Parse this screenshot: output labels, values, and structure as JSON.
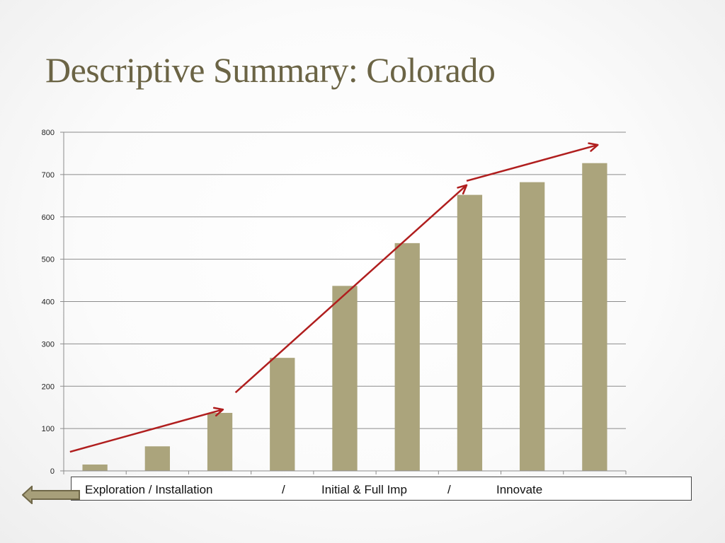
{
  "slide": {
    "title": "Descriptive Summary: Colorado"
  },
  "chart_data": {
    "type": "bar",
    "values": [
      15,
      58,
      137,
      267,
      437,
      538,
      652,
      682,
      727
    ],
    "ylim": [
      0,
      800
    ],
    "yticks": [
      0,
      100,
      200,
      300,
      400,
      500,
      600,
      700,
      800
    ],
    "grid": true,
    "bar_color": "#aba47c",
    "annotation_color": "#b01e1e",
    "annotations": [
      {
        "type": "arrow",
        "from": [
          -0.4,
          45
        ],
        "to": [
          2.05,
          145
        ]
      },
      {
        "type": "arrow",
        "from": [
          2.25,
          185
        ],
        "to": [
          5.95,
          675
        ]
      },
      {
        "type": "arrow",
        "from": [
          5.95,
          685
        ],
        "to": [
          8.05,
          770
        ]
      }
    ]
  },
  "caption": {
    "stage1": "Exploration / Installation",
    "sep1": "/",
    "stage2": "Initial  & Full Imp",
    "sep2": "/",
    "stage3": "Innovate"
  },
  "colors": {
    "title": "#6b6445",
    "background": "#ffffff"
  },
  "nav": {
    "back_icon": "back-arrow-icon"
  }
}
